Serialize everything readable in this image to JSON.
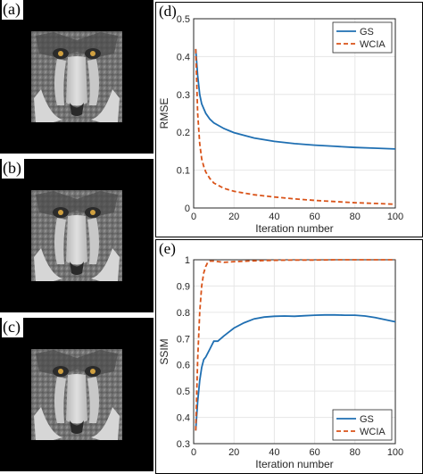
{
  "panels": {
    "a": {
      "label": "(a)"
    },
    "b": {
      "label": "(b)"
    },
    "c": {
      "label": "(c)"
    }
  },
  "chart_data": [
    {
      "label": "(d)",
      "type": "line",
      "xlabel": "Iteration number",
      "ylabel": "RMSE",
      "xlim": [
        0,
        100
      ],
      "ylim": [
        0,
        0.5
      ],
      "xticks": [
        "0",
        "20",
        "40",
        "60",
        "80",
        "100"
      ],
      "yticks": [
        "0",
        "0.1",
        "0.2",
        "0.3",
        "0.4",
        "0.5"
      ],
      "grid": true,
      "legend": "top-right",
      "series": [
        {
          "name": "GS",
          "color": "#1f6fb2",
          "style": "solid",
          "x": [
            1,
            2,
            3,
            4,
            6,
            8,
            10,
            15,
            20,
            30,
            40,
            50,
            60,
            70,
            80,
            90,
            100
          ],
          "y": [
            0.42,
            0.35,
            0.3,
            0.275,
            0.25,
            0.235,
            0.225,
            0.21,
            0.199,
            0.185,
            0.176,
            0.17,
            0.166,
            0.163,
            0.16,
            0.158,
            0.156
          ]
        },
        {
          "name": "WCIA",
          "color": "#d95319",
          "style": "dashed",
          "x": [
            1,
            2,
            3,
            4,
            5,
            6,
            8,
            10,
            15,
            20,
            30,
            40,
            50,
            60,
            70,
            80,
            90,
            100
          ],
          "y": [
            0.42,
            0.25,
            0.17,
            0.13,
            0.11,
            0.095,
            0.078,
            0.066,
            0.052,
            0.044,
            0.035,
            0.029,
            0.024,
            0.02,
            0.017,
            0.014,
            0.012,
            0.01
          ]
        }
      ]
    },
    {
      "label": "(e)",
      "type": "line",
      "xlabel": "Iteration number",
      "ylabel": "SSIM",
      "xlim": [
        0,
        100
      ],
      "ylim": [
        0.3,
        1
      ],
      "xticks": [
        "0",
        "20",
        "40",
        "60",
        "80",
        "100"
      ],
      "yticks": [
        "0.3",
        "0.4",
        "0.5",
        "0.6",
        "0.7",
        "0.8",
        "0.9",
        "1"
      ],
      "grid": true,
      "legend": "bottom-right",
      "series": [
        {
          "name": "GS",
          "color": "#1f6fb2",
          "style": "solid",
          "x": [
            1,
            2,
            3,
            4,
            5,
            6,
            8,
            10,
            12,
            15,
            20,
            25,
            30,
            35,
            40,
            45,
            50,
            55,
            60,
            65,
            70,
            75,
            80,
            85,
            90,
            95,
            100
          ],
          "y": [
            0.35,
            0.46,
            0.54,
            0.59,
            0.62,
            0.63,
            0.66,
            0.69,
            0.69,
            0.71,
            0.74,
            0.76,
            0.775,
            0.782,
            0.785,
            0.786,
            0.785,
            0.787,
            0.789,
            0.79,
            0.79,
            0.789,
            0.789,
            0.786,
            0.78,
            0.772,
            0.764
          ]
        },
        {
          "name": "WCIA",
          "color": "#d95319",
          "style": "dashed",
          "x": [
            1,
            2,
            3,
            4,
            5,
            6,
            7,
            8,
            10,
            15,
            20,
            30,
            40,
            50,
            60,
            70,
            80,
            90,
            100
          ],
          "y": [
            0.35,
            0.62,
            0.8,
            0.9,
            0.95,
            0.975,
            0.99,
            0.995,
            0.995,
            0.99,
            0.993,
            0.996,
            0.998,
            0.999,
            0.999,
            1.0,
            1.0,
            1.0,
            1.0
          ]
        }
      ]
    }
  ]
}
